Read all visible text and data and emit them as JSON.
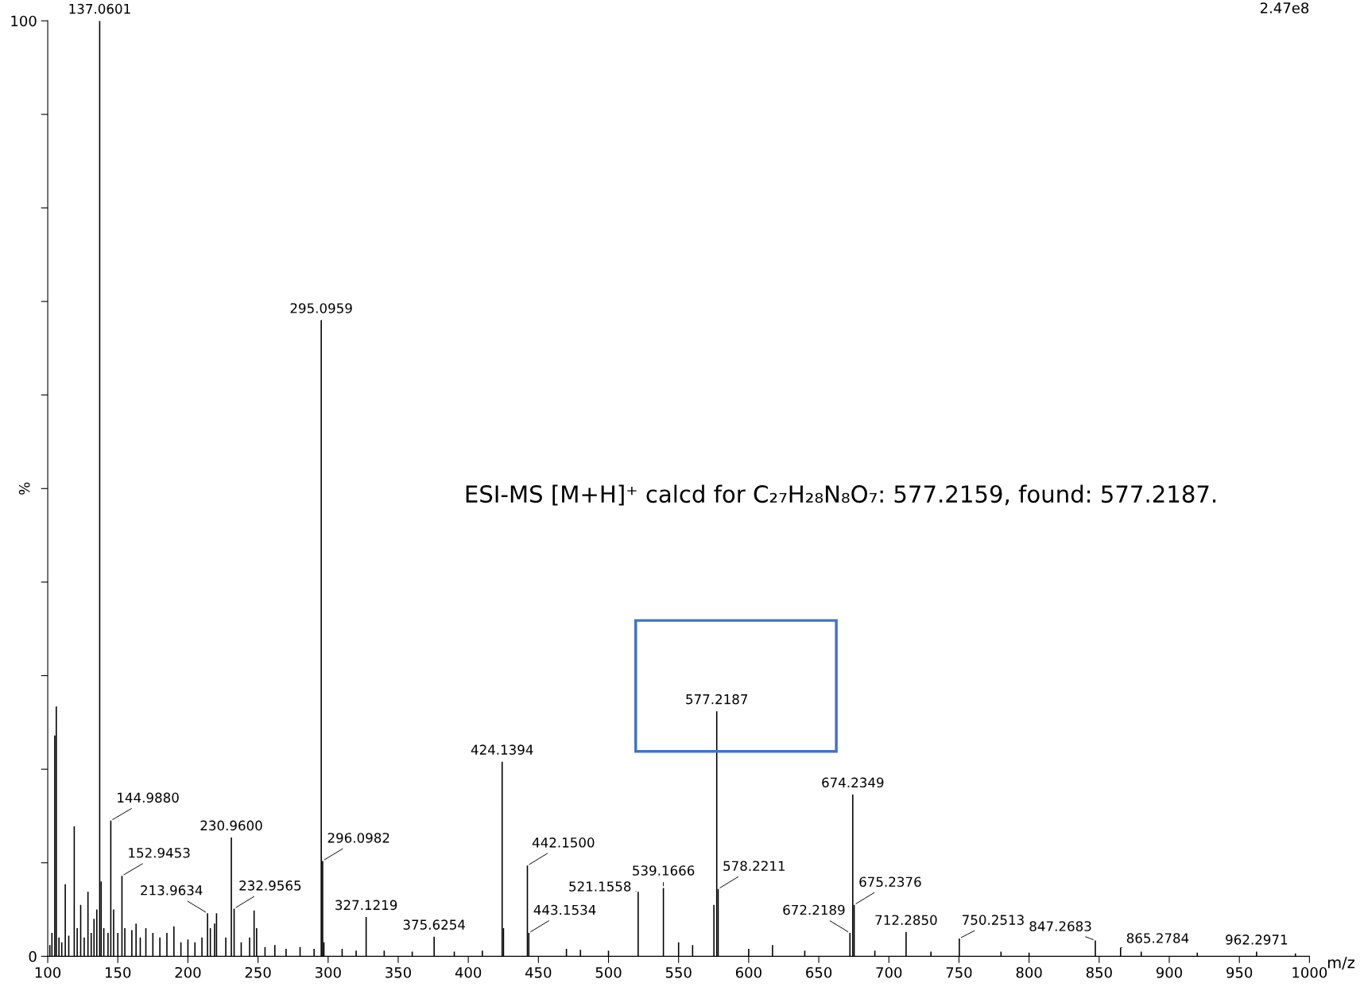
{
  "chart_data": {
    "type": "bar",
    "xlabel": "m/z",
    "ylabel": "%",
    "color": "#000000",
    "x": [
      101.5,
      103,
      105.0,
      106.1,
      108,
      110,
      112.5,
      115,
      118.9,
      121,
      123.5,
      126,
      128.7,
      131,
      133,
      135,
      137.0601,
      138.1,
      140,
      143,
      144.988,
      147,
      150,
      152.9453,
      155,
      160,
      163,
      166,
      170,
      175,
      180,
      185,
      190,
      195,
      200,
      205,
      210,
      213.9634,
      216,
      219,
      220.4,
      227,
      230.96,
      232.9565,
      238,
      244,
      247.2,
      249,
      255,
      262,
      270,
      280,
      290,
      295.0959,
      296.0982,
      297,
      310,
      320,
      327.1219,
      340,
      360,
      375.6254,
      390,
      410,
      424.1394,
      425.1,
      442.15,
      443.1534,
      470,
      480,
      500,
      521.1558,
      539.1666,
      550,
      560,
      575.2,
      577.2187,
      578.2211,
      600,
      617,
      640,
      672.2189,
      674.2349,
      675.2376,
      690,
      712.285,
      730,
      750.2513,
      780,
      800,
      847.2683,
      865.2784,
      880,
      920,
      962.2971,
      990
    ],
    "values": [
      1.2,
      2.5,
      23.6,
      26.7,
      2.0,
      1.5,
      7.7,
      2.2,
      13.9,
      3.0,
      5.5,
      2.0,
      6.9,
      2.5,
      4.0,
      5.0,
      100,
      8.0,
      3.0,
      2.5,
      14.5,
      5.0,
      2.5,
      8.6,
      3.0,
      2.8,
      3.5,
      2.0,
      3.0,
      2.5,
      2.0,
      2.5,
      3.2,
      1.5,
      1.8,
      1.5,
      2.0,
      4.6,
      3.0,
      3.5,
      4.6,
      2.0,
      12.7,
      5.1,
      1.5,
      2.0,
      4.9,
      3.0,
      1.0,
      1.2,
      0.8,
      1.0,
      0.8,
      68.0,
      10.2,
      1.5,
      0.8,
      0.6,
      4.2,
      0.6,
      0.5,
      2.1,
      0.5,
      0.6,
      20.8,
      3.0,
      9.7,
      2.5,
      0.8,
      0.7,
      0.6,
      6.9,
      7.3,
      1.5,
      1.2,
      5.5,
      26.2,
      7.2,
      0.8,
      1.2,
      0.6,
      2.5,
      17.3,
      5.5,
      0.6,
      2.6,
      0.5,
      1.9,
      0.5,
      0.4,
      1.7,
      0.9,
      0.5,
      0.4,
      0.5,
      0.3
    ],
    "xlim": [
      100,
      1000
    ],
    "xticks": [
      100,
      150,
      200,
      250,
      300,
      350,
      400,
      450,
      500,
      550,
      600,
      650,
      700,
      750,
      800,
      850,
      900,
      950,
      1000
    ],
    "ylim": [
      0,
      100
    ],
    "yticks": [
      0,
      {
        "value": 10,
        "label": null
      },
      {
        "value": 20,
        "label": null
      },
      {
        "value": 30,
        "label": null
      },
      {
        "value": 40,
        "label": null
      },
      {
        "value": 50,
        "label": null
      },
      {
        "value": 60,
        "label": null
      },
      {
        "value": 70,
        "label": null
      },
      {
        "value": 80,
        "label": null
      },
      {
        "value": 90,
        "label": null
      },
      100
    ],
    "annotations": [
      {
        "text": "137.0601",
        "x": 137.0601,
        "y": 100
      },
      {
        "text": "144.9880",
        "x": 144.988,
        "y": 14.5
      },
      {
        "text": "152.9453",
        "x": 152.9453,
        "y": 8.6
      },
      {
        "text": "213.9634",
        "x": 213.9634,
        "y": 4.6
      },
      {
        "text": "230.9600",
        "x": 230.96,
        "y": 12.7
      },
      {
        "text": "232.9565",
        "x": 232.9565,
        "y": 5.1
      },
      {
        "text": "295.0959",
        "x": 295.0959,
        "y": 68.0
      },
      {
        "text": "296.0982",
        "x": 296.0982,
        "y": 10.2
      },
      {
        "text": "327.1219",
        "x": 327.1219,
        "y": 4.2
      },
      {
        "text": "375.6254",
        "x": 375.6254,
        "y": 2.1
      },
      {
        "text": "424.1394",
        "x": 424.1394,
        "y": 20.8
      },
      {
        "text": "442.1500",
        "x": 442.15,
        "y": 9.7
      },
      {
        "text": "443.1534",
        "x": 443.1534,
        "y": 2.5
      },
      {
        "text": "521.1558",
        "x": 521.1558,
        "y": 6.9
      },
      {
        "text": "539.1666",
        "x": 539.1666,
        "y": 7.3
      },
      {
        "text": "577.2187",
        "x": 577.2187,
        "y": 26.2
      },
      {
        "text": "578.2211",
        "x": 578.2211,
        "y": 7.2
      },
      {
        "text": "674.2349",
        "x": 674.2349,
        "y": 17.3
      },
      {
        "text": "672.2189",
        "x": 672.2189,
        "y": 2.5
      },
      {
        "text": "675.2376",
        "x": 675.2376,
        "y": 5.5
      },
      {
        "text": "712.2850",
        "x": 712.285,
        "y": 2.6
      },
      {
        "text": "750.2513",
        "x": 750.2513,
        "y": 1.9
      },
      {
        "text": "847.2683",
        "x": 847.2683,
        "y": 1.7
      },
      {
        "text": "865.2784",
        "x": 865.2784,
        "y": 0.9
      },
      {
        "text": "962.2971",
        "x": 962.2971,
        "y": 0.5
      },
      "2.47e8",
      "ESI-MS [M+H]⁺ calcd for C₂₇H₂₈N₈O₇: 577.2159, found: 577.2187."
    ]
  }
}
